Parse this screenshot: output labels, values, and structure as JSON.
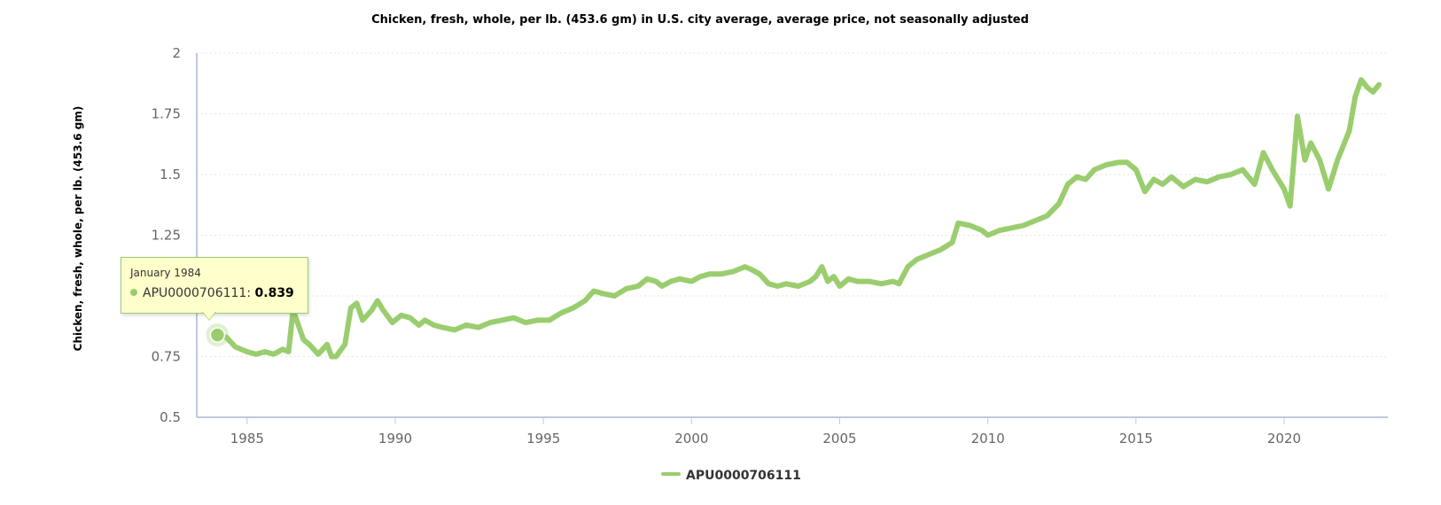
{
  "colors": {
    "series": "#9acd6e",
    "axis": "#c0c8e0",
    "grid": "#e6e6e6",
    "tick_text": "#666666"
  },
  "chart_data": {
    "type": "line",
    "title": "Chicken, fresh, whole, per lb. (453.6 gm) in U.S. city average, average price, not seasonally adjusted",
    "xlabel": "",
    "ylabel": "Chicken, fresh, whole, per lb. (453.6 gm)",
    "xlim": [
      1983.3,
      2023.5
    ],
    "ylim": [
      0.5,
      2
    ],
    "x_ticks": [
      1985,
      1990,
      1995,
      2000,
      2005,
      2010,
      2015,
      2020
    ],
    "y_ticks": [
      0.5,
      0.75,
      1,
      1.25,
      1.5,
      1.75,
      2
    ],
    "y_tick_labels": [
      "0.5",
      "0.75",
      "",
      "1.25",
      "1.5",
      "1.75",
      "2"
    ],
    "grid": true,
    "legend": "bottom-center",
    "series": [
      {
        "name": "APU0000706111",
        "x": [
          1984.0,
          1984.3,
          1984.6,
          1985.0,
          1985.3,
          1985.6,
          1985.9,
          1986.2,
          1986.4,
          1986.55,
          1986.7,
          1986.9,
          1987.1,
          1987.4,
          1987.7,
          1987.85,
          1988.0,
          1988.3,
          1988.5,
          1988.7,
          1988.9,
          1989.2,
          1989.4,
          1989.6,
          1989.9,
          1990.2,
          1990.5,
          1990.8,
          1991.0,
          1991.3,
          1991.6,
          1992.0,
          1992.4,
          1992.8,
          1993.2,
          1993.6,
          1994.0,
          1994.4,
          1994.8,
          1995.2,
          1995.6,
          1996.0,
          1996.4,
          1996.7,
          1997.0,
          1997.4,
          1997.8,
          1998.2,
          1998.5,
          1998.8,
          1999.0,
          1999.3,
          1999.6,
          2000.0,
          2000.3,
          2000.6,
          2001.0,
          2001.4,
          2001.8,
          2002.0,
          2002.3,
          2002.6,
          2002.9,
          2003.2,
          2003.6,
          2004.0,
          2004.2,
          2004.4,
          2004.6,
          2004.8,
          2005.0,
          2005.3,
          2005.6,
          2006.0,
          2006.4,
          2006.8,
          2007.0,
          2007.3,
          2007.6,
          2008.0,
          2008.4,
          2008.8,
          2009.0,
          2009.4,
          2009.8,
          2010.0,
          2010.4,
          2010.8,
          2011.2,
          2011.6,
          2012.0,
          2012.4,
          2012.7,
          2013.0,
          2013.3,
          2013.6,
          2014.0,
          2014.4,
          2014.7,
          2015.0,
          2015.3,
          2015.6,
          2015.9,
          2016.2,
          2016.6,
          2017.0,
          2017.4,
          2017.8,
          2018.2,
          2018.6,
          2019.0,
          2019.3,
          2019.6,
          2019.8,
          2020.0,
          2020.2,
          2020.45,
          2020.7,
          2020.9,
          2021.2,
          2021.5,
          2021.8,
          2022.0,
          2022.2,
          2022.4,
          2022.6,
          2022.8,
          2023.0,
          2023.2
        ],
        "values": [
          0.839,
          0.83,
          0.79,
          0.77,
          0.76,
          0.77,
          0.76,
          0.78,
          0.77,
          0.94,
          0.89,
          0.82,
          0.8,
          0.76,
          0.8,
          0.75,
          0.75,
          0.8,
          0.95,
          0.97,
          0.9,
          0.94,
          0.98,
          0.94,
          0.89,
          0.92,
          0.91,
          0.88,
          0.9,
          0.88,
          0.87,
          0.86,
          0.88,
          0.87,
          0.89,
          0.9,
          0.91,
          0.89,
          0.9,
          0.9,
          0.93,
          0.95,
          0.98,
          1.02,
          1.01,
          1.0,
          1.03,
          1.04,
          1.07,
          1.06,
          1.04,
          1.06,
          1.07,
          1.06,
          1.08,
          1.09,
          1.09,
          1.1,
          1.12,
          1.11,
          1.09,
          1.05,
          1.04,
          1.05,
          1.04,
          1.06,
          1.08,
          1.12,
          1.06,
          1.08,
          1.04,
          1.07,
          1.06,
          1.06,
          1.05,
          1.06,
          1.05,
          1.12,
          1.15,
          1.17,
          1.19,
          1.22,
          1.3,
          1.29,
          1.27,
          1.25,
          1.27,
          1.28,
          1.29,
          1.31,
          1.33,
          1.38,
          1.46,
          1.49,
          1.48,
          1.52,
          1.54,
          1.55,
          1.55,
          1.52,
          1.43,
          1.48,
          1.46,
          1.49,
          1.45,
          1.48,
          1.47,
          1.49,
          1.5,
          1.52,
          1.46,
          1.59,
          1.52,
          1.48,
          1.44,
          1.37,
          1.74,
          1.56,
          1.63,
          1.56,
          1.44,
          1.56,
          1.62,
          1.68,
          1.82,
          1.89,
          1.86,
          1.84,
          1.87
        ]
      }
    ],
    "tooltip": {
      "date": "January 1984",
      "series": "APU0000706111",
      "value": "0.839",
      "x": 1984.0
    }
  }
}
